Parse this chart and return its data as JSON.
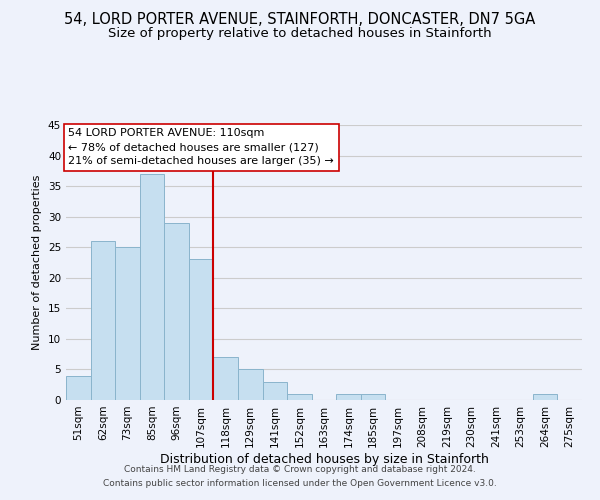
{
  "title": "54, LORD PORTER AVENUE, STAINFORTH, DONCASTER, DN7 5GA",
  "subtitle": "Size of property relative to detached houses in Stainforth",
  "xlabel": "Distribution of detached houses by size in Stainforth",
  "ylabel": "Number of detached properties",
  "footer_line1": "Contains HM Land Registry data © Crown copyright and database right 2024.",
  "footer_line2": "Contains public sector information licensed under the Open Government Licence v3.0.",
  "bin_labels": [
    "51sqm",
    "62sqm",
    "73sqm",
    "85sqm",
    "96sqm",
    "107sqm",
    "118sqm",
    "129sqm",
    "141sqm",
    "152sqm",
    "163sqm",
    "174sqm",
    "185sqm",
    "197sqm",
    "208sqm",
    "219sqm",
    "230sqm",
    "241sqm",
    "253sqm",
    "264sqm",
    "275sqm"
  ],
  "bin_values": [
    4,
    26,
    25,
    37,
    29,
    23,
    7,
    5,
    3,
    1,
    0,
    1,
    1,
    0,
    0,
    0,
    0,
    0,
    0,
    1,
    0
  ],
  "bar_color": "#c6dff0",
  "bar_edge_color": "#8ab4cc",
  "grid_color": "#cccccc",
  "ref_line_color": "#cc0000",
  "annotation_line1": "54 LORD PORTER AVENUE: 110sqm",
  "annotation_line2": "← 78% of detached houses are smaller (127)",
  "annotation_line3": "21% of semi-detached houses are larger (35) →",
  "annotation_box_color": "#ffffff",
  "annotation_box_edge_color": "#cc0000",
  "ylim": [
    0,
    45
  ],
  "yticks": [
    0,
    5,
    10,
    15,
    20,
    25,
    30,
    35,
    40,
    45
  ],
  "background_color": "#eef2fb",
  "title_fontsize": 10.5,
  "subtitle_fontsize": 9.5,
  "xlabel_fontsize": 9,
  "ylabel_fontsize": 8,
  "tick_fontsize": 7.5,
  "annotation_fontsize": 8,
  "footer_fontsize": 6.5
}
